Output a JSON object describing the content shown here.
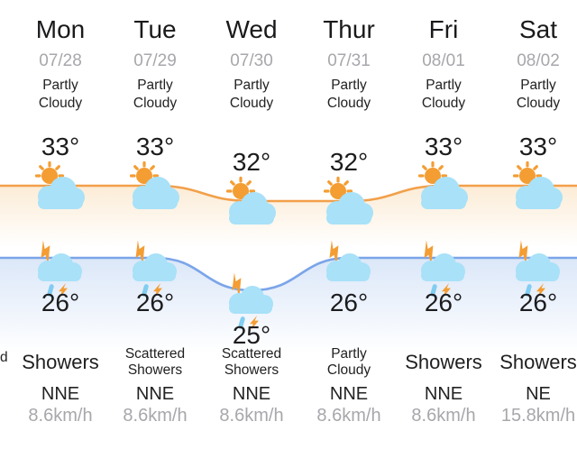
{
  "days": [
    {
      "day": "Mon",
      "date": "07/28",
      "cond_day": "Partly\nCloudy",
      "high_label": "33°",
      "low_label": "26°",
      "high_icon": "partly-sunny",
      "low_icon": "thunder-rain",
      "cond_night": "Showers",
      "wind_dir": "NNE",
      "wind_speed": "8.6km/h"
    },
    {
      "day": "Tue",
      "date": "07/29",
      "cond_day": "Partly\nCloudy",
      "high_label": "33°",
      "low_label": "26°",
      "high_icon": "partly-sunny",
      "low_icon": "thunder-rain",
      "cond_night": "Scattered\nShowers",
      "wind_dir": "NNE",
      "wind_speed": "8.6km/h"
    },
    {
      "day": "Wed",
      "date": "07/30",
      "cond_day": "Partly\nCloudy",
      "high_label": "32°",
      "low_label": "25°",
      "high_icon": "partly-sunny",
      "low_icon": "thunder-rain",
      "cond_night": "Scattered\nShowers",
      "wind_dir": "NNE",
      "wind_speed": "8.6km/h"
    },
    {
      "day": "Thur",
      "date": "07/31",
      "cond_day": "Partly\nCloudy",
      "high_label": "32°",
      "low_label": "26°",
      "high_icon": "partly-sunny",
      "low_icon": "thunder",
      "cond_night": "Partly\nCloudy",
      "wind_dir": "NNE",
      "wind_speed": "8.6km/h"
    },
    {
      "day": "Fri",
      "date": "08/01",
      "cond_day": "Partly\nCloudy",
      "high_label": "33°",
      "low_label": "26°",
      "high_icon": "partly-sunny",
      "low_icon": "thunder-rain",
      "cond_night": "Showers",
      "wind_dir": "NNE",
      "wind_speed": "8.6km/h"
    },
    {
      "day": "Sat",
      "date": "08/02",
      "cond_day": "Partly\nCloudy",
      "high_label": "33°",
      "low_label": "26°",
      "high_icon": "partly-sunny",
      "low_icon": "thunder-rain",
      "cond_night": "Showers",
      "wind_dir": "NE",
      "wind_speed": "15.8km/h"
    }
  ],
  "edge_fragment": "d",
  "chart_data": {
    "type": "line",
    "categories": [
      "Mon",
      "Tue",
      "Wed",
      "Thur",
      "Fri",
      "Sat"
    ],
    "series": [
      {
        "name": "High temperature",
        "values": [
          33,
          33,
          32,
          32,
          33,
          33
        ],
        "unit": "°",
        "color": "#F2A04A"
      },
      {
        "name": "Low temperature",
        "values": [
          26,
          26,
          25,
          26,
          26,
          26
        ],
        "unit": "°",
        "color": "#7BA5E9"
      }
    ],
    "title": "",
    "xlabel": "",
    "ylabel": "",
    "grid": false,
    "legend": "none",
    "style": "two smooth area-filled lines drawn behind weather icons, values labeled at each point"
  },
  "colors": {
    "high_line": "#F2A04A",
    "low_line": "#7BA5E9",
    "sun_orange": "#F49D33",
    "cloud_blue": "#A8E1F8",
    "rain_blue": "#82CDF1",
    "muted_text": "#a7a7ac",
    "dark_text": "#1c1c1e"
  }
}
